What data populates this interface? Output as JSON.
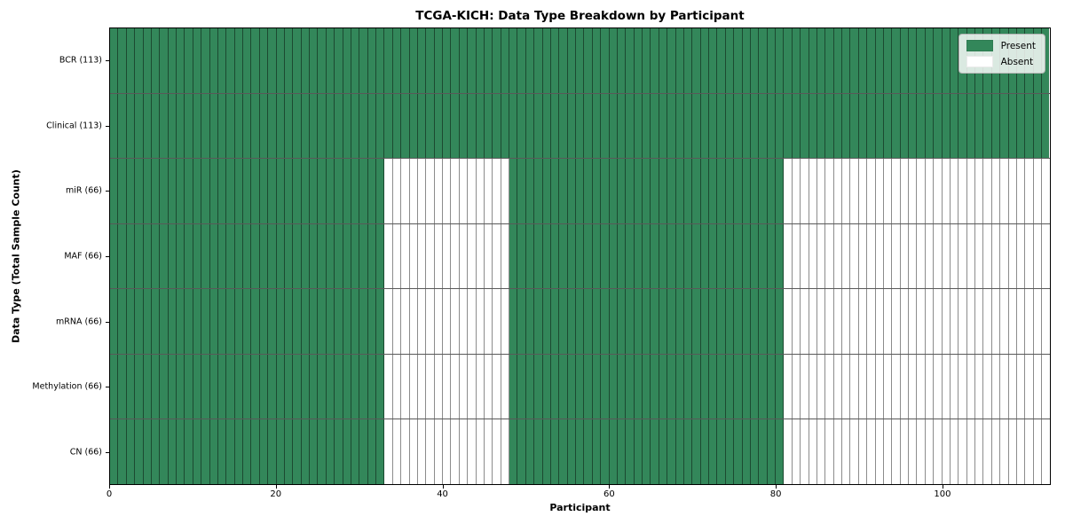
{
  "title": "TCGA-KICH: Data Type Breakdown by Participant",
  "axes": {
    "xlabel": "Participant",
    "ylabel": "Data Type (Total Sample Count)"
  },
  "legend": {
    "present_label": "Present",
    "absent_label": "Absent"
  },
  "colors": {
    "present": "#33875a",
    "absent": "#ffffff",
    "grid_line": "rgba(0,0,0,0.45)",
    "legend_border": "#b5b5b5"
  },
  "chart_data": {
    "type": "heatmap",
    "title": "TCGA-KICH: Data Type Breakdown by Participant",
    "xlabel": "Participant",
    "ylabel": "Data Type (Total Sample Count)",
    "n_participants": 113,
    "x_ticks": [
      0,
      20,
      40,
      60,
      80,
      100
    ],
    "xlim": [
      0,
      113
    ],
    "grid": "per-cell outlines",
    "legend_position": "upper right",
    "legend_entries": [
      {
        "label": "Present",
        "color": "#33875a"
      },
      {
        "label": "Absent",
        "color": "#ffffff"
      }
    ],
    "rows": [
      {
        "label": "BCR (113)",
        "data_type": "BCR",
        "sample_count": 113,
        "present_ranges": [
          [
            0,
            113
          ]
        ]
      },
      {
        "label": "Clinical (113)",
        "data_type": "Clinical",
        "sample_count": 113,
        "present_ranges": [
          [
            0,
            113
          ]
        ]
      },
      {
        "label": "miR (66)",
        "data_type": "miR",
        "sample_count": 66,
        "present_ranges": [
          [
            0,
            33
          ],
          [
            48,
            81
          ]
        ]
      },
      {
        "label": "MAF (66)",
        "data_type": "MAF",
        "sample_count": 66,
        "present_ranges": [
          [
            0,
            33
          ],
          [
            48,
            81
          ]
        ]
      },
      {
        "label": "mRNA (66)",
        "data_type": "mRNA",
        "sample_count": 66,
        "present_ranges": [
          [
            0,
            33
          ],
          [
            48,
            81
          ]
        ]
      },
      {
        "label": "Methylation (66)",
        "data_type": "Methylation",
        "sample_count": 66,
        "present_ranges": [
          [
            0,
            33
          ],
          [
            48,
            81
          ]
        ]
      },
      {
        "label": "CN (66)",
        "data_type": "CN",
        "sample_count": 66,
        "present_ranges": [
          [
            0,
            33
          ],
          [
            48,
            81
          ]
        ]
      }
    ]
  }
}
